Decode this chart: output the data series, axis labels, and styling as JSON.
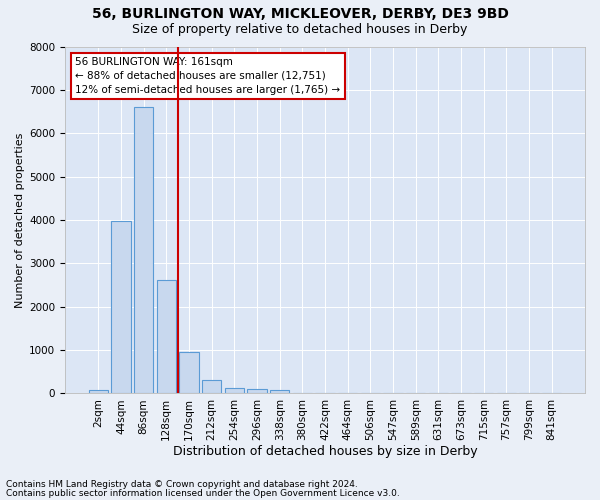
{
  "title1": "56, BURLINGTON WAY, MICKLEOVER, DERBY, DE3 9BD",
  "title2": "Size of property relative to detached houses in Derby",
  "xlabel": "Distribution of detached houses by size in Derby",
  "ylabel": "Number of detached properties",
  "footer1": "Contains HM Land Registry data © Crown copyright and database right 2024.",
  "footer2": "Contains public sector information licensed under the Open Government Licence v3.0.",
  "bar_labels": [
    "2sqm",
    "44sqm",
    "86sqm",
    "128sqm",
    "170sqm",
    "212sqm",
    "254sqm",
    "296sqm",
    "338sqm",
    "380sqm",
    "422sqm",
    "464sqm",
    "506sqm",
    "547sqm",
    "589sqm",
    "631sqm",
    "673sqm",
    "715sqm",
    "757sqm",
    "799sqm",
    "841sqm"
  ],
  "bar_values": [
    80,
    3980,
    6600,
    2620,
    950,
    300,
    130,
    110,
    80,
    0,
    0,
    0,
    0,
    0,
    0,
    0,
    0,
    0,
    0,
    0,
    0
  ],
  "bar_color": "#c8d8ee",
  "bar_edge_color": "#5b9bd5",
  "vline_color": "#cc0000",
  "vline_pos": 3.5,
  "annotation_line1": "56 BURLINGTON WAY: 161sqm",
  "annotation_line2": "← 88% of detached houses are smaller (12,751)",
  "annotation_line3": "12% of semi-detached houses are larger (1,765) →",
  "annotation_box_color": "#cc0000",
  "ylim": [
    0,
    8000
  ],
  "bg_color": "#eaeff7",
  "plot_bg_color": "#dce6f5",
  "grid_color": "#ffffff",
  "title1_fontsize": 10,
  "title2_fontsize": 9,
  "xlabel_fontsize": 9,
  "ylabel_fontsize": 8,
  "tick_fontsize": 7.5,
  "footer_fontsize": 6.5
}
